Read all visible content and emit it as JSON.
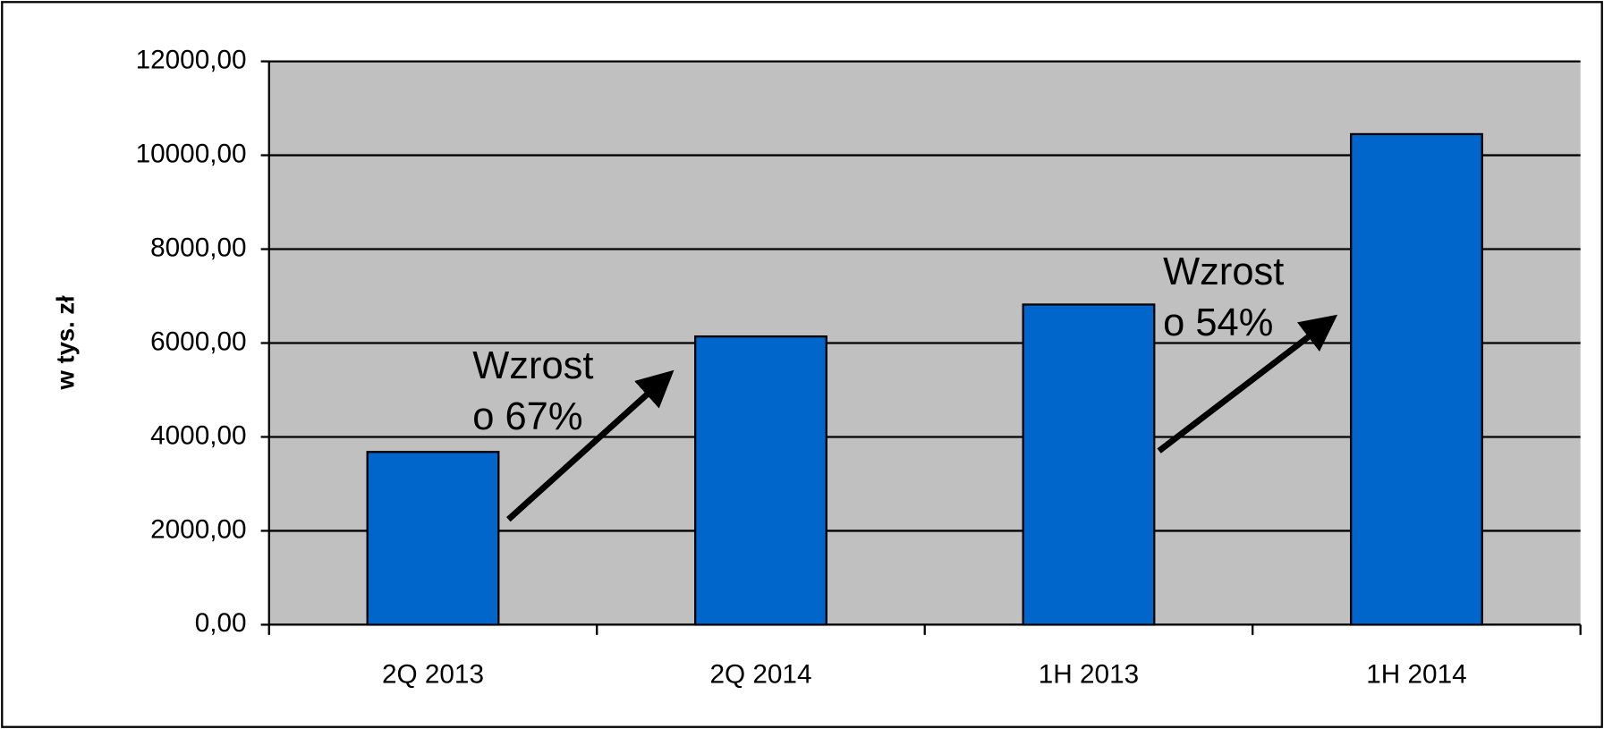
{
  "chart_data": {
    "type": "bar",
    "y_label": "w tys. zł",
    "categories": [
      "2Q 2013",
      "2Q 2014",
      "1H 2013",
      "1H 2014"
    ],
    "values": [
      3680,
      6140,
      6820,
      10450
    ],
    "color": "#0066cc",
    "ylim": [
      0,
      12000
    ],
    "yticks": [
      {
        "value": 0,
        "label": "0,00"
      },
      {
        "value": 2000,
        "label": "2000,00"
      },
      {
        "value": 4000,
        "label": "4000,00"
      },
      {
        "value": 6000,
        "label": "6000,00"
      },
      {
        "value": 8000,
        "label": "8000,00"
      },
      {
        "value": 10000,
        "label": "10000,00"
      },
      {
        "value": 12000,
        "label": "12000,00"
      }
    ],
    "grid": true,
    "annotations": [
      [
        "Wzrost",
        "o 67%"
      ],
      [
        "Wzrost",
        "o 54%"
      ]
    ]
  }
}
